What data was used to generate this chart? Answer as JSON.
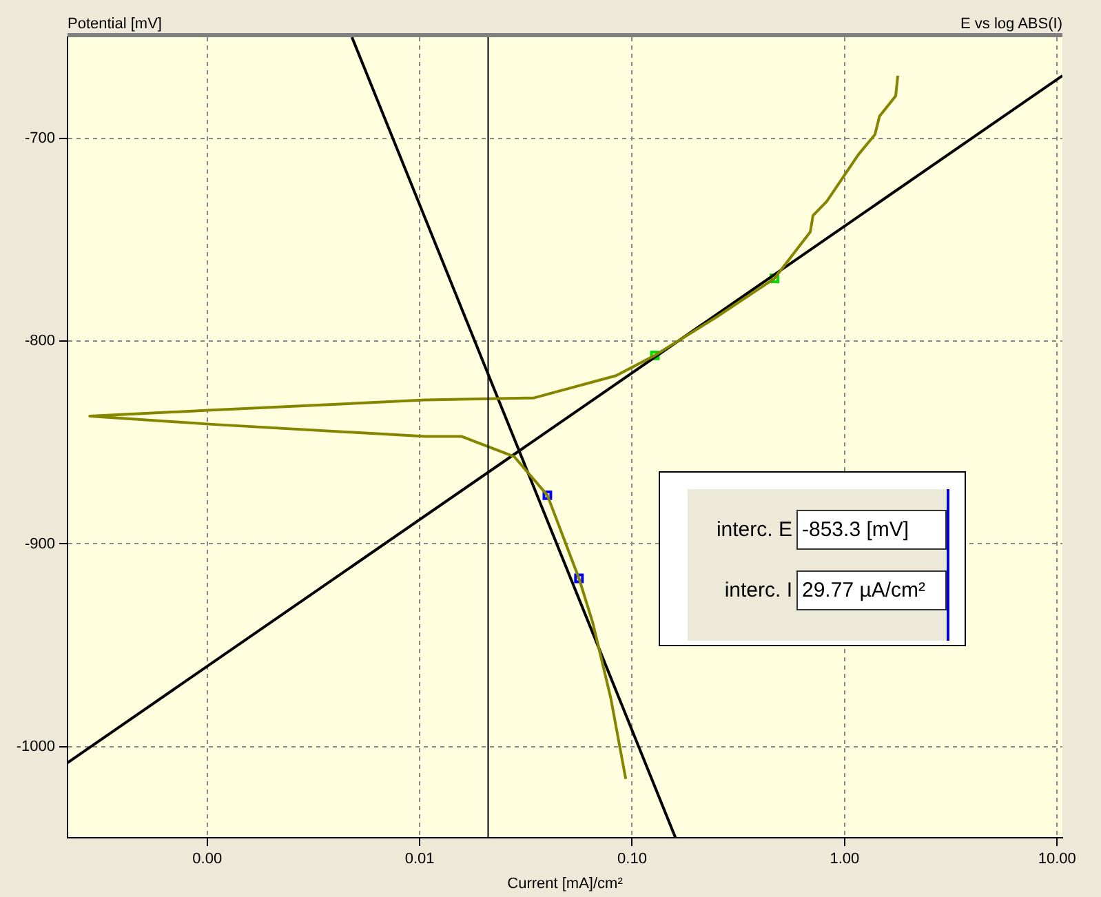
{
  "chart_data": {
    "type": "line",
    "title": "E vs log ABS(I)",
    "xlabel": "Current [mA]/cm²",
    "ylabel": "Potential [mV]",
    "annotations": [
      "interc. E",
      "-853.3 [mV]",
      "interc. I",
      "29.77 µA/cm²"
    ],
    "log": "x",
    "xlim": [
      0.00022,
      10.6
    ],
    "ylim": [
      -1045,
      -650
    ],
    "xticks": [
      {
        "value": 0.001,
        "label": "0.00"
      },
      {
        "value": 0.01,
        "label": "0.01"
      },
      {
        "value": 0.1,
        "label": "0.10"
      },
      {
        "value": 1,
        "label": "1.00"
      },
      {
        "value": 10,
        "label": "10.00"
      }
    ],
    "yticks": [
      -700,
      -800,
      -900,
      -1000
    ],
    "grid": true,
    "legend": false,
    "ref_lines": [
      {
        "axis": "x",
        "value": 0.021,
        "color": "#000000"
      }
    ],
    "series": [
      {
        "type": "line",
        "color": "#858500",
        "marker": "none",
        "x": [
          0.0933,
          0.0793,
          0.0653,
          0.0562,
          0.0399,
          0.0279,
          0.0158,
          0.0107,
          0.00105,
          0.00028,
          0.00105,
          0.0106,
          0.0344,
          0.084,
          0.128,
          0.25,
          0.468,
          0.69,
          0.71,
          0.824,
          1.16,
          1.39,
          1.46,
          1.74,
          1.78
        ],
        "values": [
          -1016,
          -976,
          -939,
          -917,
          -876,
          -857,
          -847,
          -847,
          -841,
          -837,
          -834,
          -829,
          -828,
          -817,
          -807,
          -788,
          -769,
          -746,
          -738,
          -731,
          -708,
          -698,
          -689,
          -679,
          -669
        ]
      },
      {
        "type": "line",
        "color": "#000000",
        "marker": "none",
        "x": [
          0.00022,
          10.6
        ],
        "values": [
          -1008,
          -669
        ]
      },
      {
        "type": "line",
        "color": "#000000",
        "marker": "none",
        "x": [
          0.0048,
          0.16
        ],
        "values": [
          -650,
          -1045
        ]
      },
      {
        "type": "scatter",
        "color": "#00dd00",
        "marker": "square",
        "x": [
          0.128,
          0.468
        ],
        "values": [
          -807,
          -769
        ]
      },
      {
        "type": "scatter",
        "color": "#0000ff",
        "marker": "square",
        "x": [
          0.0399,
          0.0562
        ],
        "values": [
          -876,
          -917
        ]
      }
    ]
  }
}
